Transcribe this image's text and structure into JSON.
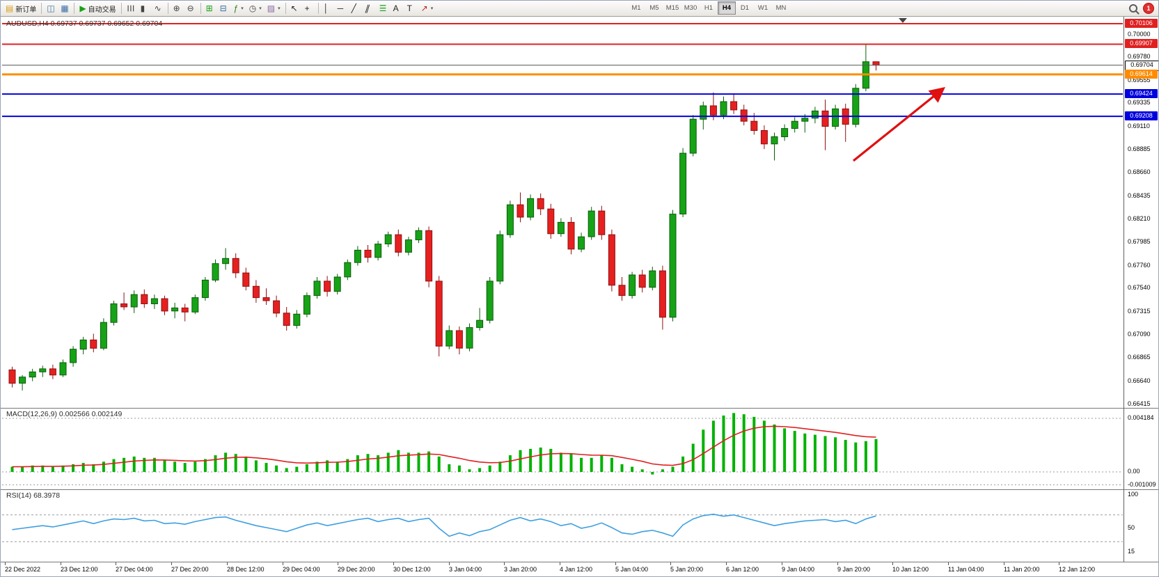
{
  "toolbar": {
    "alert_count": "1",
    "active_timeframe": "H4",
    "timeframes": [
      "M1",
      "M5",
      "M15",
      "M30",
      "H1",
      "H4",
      "D1",
      "W1",
      "MN"
    ],
    "items": [
      {
        "type": "button",
        "name": "new-order-button",
        "glyph": "▤",
        "glyph_color": "#d89c14",
        "label": "新订单"
      },
      {
        "type": "sep"
      },
      {
        "type": "icon",
        "name": "charts-icon",
        "glyph": "◫",
        "glyph_color": "#3a6ea5"
      },
      {
        "type": "icon",
        "name": "profiles-icon",
        "glyph": "▦",
        "glyph_color": "#3a6ea5"
      },
      {
        "type": "sep"
      },
      {
        "type": "button",
        "name": "auto-trading-button",
        "glyph": "▶",
        "glyph_color": "#18a018",
        "label": "自动交易"
      },
      {
        "type": "sep"
      },
      {
        "type": "icon",
        "name": "bar-chart-icon",
        "glyph": "☰",
        "glyph_color": "#444444",
        "rotate": 90
      },
      {
        "type": "icon",
        "name": "candlestick-chart-icon",
        "glyph": "▮",
        "glyph_color": "#444444"
      },
      {
        "type": "icon",
        "name": "line-chart-icon",
        "glyph": "∿",
        "glyph_color": "#444444"
      },
      {
        "type": "sep"
      },
      {
        "type": "icon",
        "name": "zoom-in-icon",
        "glyph": "⊕",
        "glyph_color": "#444444"
      },
      {
        "type": "icon",
        "name": "zoom-out-icon",
        "glyph": "⊖",
        "glyph_color": "#444444"
      },
      {
        "type": "sep"
      },
      {
        "type": "icon",
        "name": "tile-windows-icon",
        "glyph": "⊞",
        "glyph_color": "#18a018"
      },
      {
        "type": "icon",
        "name": "chart-shift-icon",
        "glyph": "⊟",
        "glyph_color": "#3a6ea5"
      },
      {
        "type": "icon",
        "name": "indicators-icon",
        "glyph": "ƒ",
        "glyph_color": "#2a7a2a",
        "caret": true
      },
      {
        "type": "icon",
        "name": "periods-icon",
        "glyph": "◷",
        "glyph_color": "#444444",
        "caret": true
      },
      {
        "type": "icon",
        "name": "templates-icon",
        "glyph": "▨",
        "glyph_color": "#8868a8",
        "caret": true
      },
      {
        "type": "sep"
      },
      {
        "type": "icon",
        "name": "cursor-icon",
        "glyph": "↖",
        "glyph_color": "#222222"
      },
      {
        "type": "icon",
        "name": "crosshair-icon",
        "glyph": "+",
        "glyph_color": "#222222"
      },
      {
        "type": "sep"
      },
      {
        "type": "icon",
        "name": "vertical-line-icon",
        "glyph": "│",
        "glyph_color": "#222222"
      },
      {
        "type": "icon",
        "name": "horizontal-line-icon",
        "glyph": "─",
        "glyph_color": "#222222"
      },
      {
        "type": "icon",
        "name": "trendline-icon",
        "glyph": "╱",
        "glyph_color": "#222222"
      },
      {
        "type": "icon",
        "name": "equidistant-channel-icon",
        "glyph": "∥",
        "glyph_color": "#222222",
        "skew": true
      },
      {
        "type": "icon",
        "name": "fibonacci-icon",
        "glyph": "☰",
        "glyph_color": "#18a018"
      },
      {
        "type": "icon",
        "name": "text-icon",
        "glyph": "A",
        "glyph_color": "#222222"
      },
      {
        "type": "icon",
        "name": "text-label-icon",
        "glyph": "T",
        "glyph_color": "#222222"
      },
      {
        "type": "icon",
        "name": "arrows-icon",
        "glyph": "↗",
        "glyph_color": "#c02020",
        "caret": true
      }
    ]
  },
  "chart_data": {
    "type": "candlestick",
    "symbol": "AUDUSD",
    "timeframe": "H4",
    "header": "AUDUSD,H4 0.69737 0.69737 0.69652 0.69704",
    "current_bar": {
      "open": "0.69737",
      "high": "0.69737",
      "low": "0.69652",
      "close": "0.69704"
    },
    "price_range": [
      0.66415,
      0.70106
    ],
    "up_color": "#17a317",
    "down_color": "#e62020",
    "candles": [
      [
        0.6675,
        0.6678,
        0.6658,
        0.6662
      ],
      [
        0.6662,
        0.667,
        0.6655,
        0.6668
      ],
      [
        0.6668,
        0.6676,
        0.6664,
        0.6673
      ],
      [
        0.6673,
        0.6679,
        0.6668,
        0.6676
      ],
      [
        0.6676,
        0.668,
        0.6666,
        0.667
      ],
      [
        0.667,
        0.6685,
        0.6668,
        0.6682
      ],
      [
        0.6682,
        0.6698,
        0.6678,
        0.6695
      ],
      [
        0.6695,
        0.6707,
        0.669,
        0.6704
      ],
      [
        0.6704,
        0.671,
        0.6692,
        0.6696
      ],
      [
        0.6696,
        0.6725,
        0.6694,
        0.6721
      ],
      [
        0.6721,
        0.6742,
        0.6718,
        0.6739
      ],
      [
        0.6739,
        0.675,
        0.6733,
        0.6736
      ],
      [
        0.6736,
        0.6752,
        0.673,
        0.6748
      ],
      [
        0.6748,
        0.6753,
        0.6735,
        0.6739
      ],
      [
        0.6739,
        0.6748,
        0.6734,
        0.6744
      ],
      [
        0.6744,
        0.6747,
        0.6728,
        0.6732
      ],
      [
        0.6732,
        0.674,
        0.6725,
        0.6735
      ],
      [
        0.6735,
        0.6739,
        0.6722,
        0.6731
      ],
      [
        0.6731,
        0.6748,
        0.6729,
        0.6745
      ],
      [
        0.6745,
        0.6765,
        0.6742,
        0.6762
      ],
      [
        0.6762,
        0.6782,
        0.676,
        0.6778
      ],
      [
        0.6778,
        0.6793,
        0.6772,
        0.6783
      ],
      [
        0.6783,
        0.6788,
        0.6764,
        0.6769
      ],
      [
        0.6769,
        0.6774,
        0.6752,
        0.6756
      ],
      [
        0.6756,
        0.6762,
        0.674,
        0.6745
      ],
      [
        0.6745,
        0.6754,
        0.6738,
        0.6742
      ],
      [
        0.6742,
        0.6747,
        0.6726,
        0.673
      ],
      [
        0.673,
        0.6736,
        0.6713,
        0.6718
      ],
      [
        0.6718,
        0.6733,
        0.6715,
        0.6729
      ],
      [
        0.6729,
        0.675,
        0.6726,
        0.6747
      ],
      [
        0.6747,
        0.6765,
        0.6744,
        0.6761
      ],
      [
        0.6761,
        0.6766,
        0.6746,
        0.6751
      ],
      [
        0.6751,
        0.6768,
        0.6748,
        0.6765
      ],
      [
        0.6765,
        0.6782,
        0.6762,
        0.6779
      ],
      [
        0.6779,
        0.6795,
        0.6776,
        0.6791
      ],
      [
        0.6791,
        0.6796,
        0.6779,
        0.6784
      ],
      [
        0.6784,
        0.68,
        0.6781,
        0.6797
      ],
      [
        0.6797,
        0.6809,
        0.6794,
        0.6806
      ],
      [
        0.6806,
        0.6811,
        0.6785,
        0.6789
      ],
      [
        0.6789,
        0.6804,
        0.6786,
        0.6801
      ],
      [
        0.6801,
        0.6813,
        0.6798,
        0.681
      ],
      [
        0.681,
        0.6814,
        0.6755,
        0.6761
      ],
      [
        0.6761,
        0.6766,
        0.6688,
        0.6698
      ],
      [
        0.6698,
        0.6718,
        0.6695,
        0.6713
      ],
      [
        0.6713,
        0.6717,
        0.669,
        0.6696
      ],
      [
        0.6696,
        0.672,
        0.6693,
        0.6716
      ],
      [
        0.6716,
        0.6735,
        0.6713,
        0.6723
      ],
      [
        0.6723,
        0.6765,
        0.672,
        0.6761
      ],
      [
        0.6761,
        0.681,
        0.6758,
        0.6806
      ],
      [
        0.6806,
        0.6839,
        0.6803,
        0.6835
      ],
      [
        0.6835,
        0.6847,
        0.6818,
        0.6823
      ],
      [
        0.6823,
        0.6845,
        0.682,
        0.6841
      ],
      [
        0.6841,
        0.6846,
        0.6825,
        0.6831
      ],
      [
        0.6831,
        0.6836,
        0.6802,
        0.6807
      ],
      [
        0.6807,
        0.6822,
        0.6804,
        0.6818
      ],
      [
        0.6818,
        0.6823,
        0.6787,
        0.6792
      ],
      [
        0.6792,
        0.6808,
        0.6789,
        0.6804
      ],
      [
        0.6804,
        0.6833,
        0.6801,
        0.6829
      ],
      [
        0.6829,
        0.6834,
        0.6801,
        0.6806
      ],
      [
        0.6806,
        0.6811,
        0.6751,
        0.6757
      ],
      [
        0.6757,
        0.6765,
        0.6742,
        0.6747
      ],
      [
        0.6747,
        0.677,
        0.6744,
        0.6767
      ],
      [
        0.6767,
        0.6772,
        0.675,
        0.6755
      ],
      [
        0.6755,
        0.6775,
        0.6752,
        0.6771
      ],
      [
        0.6771,
        0.6776,
        0.6714,
        0.6726
      ],
      [
        0.6726,
        0.683,
        0.6722,
        0.6826
      ],
      [
        0.6826,
        0.689,
        0.6823,
        0.6885
      ],
      [
        0.6885,
        0.6922,
        0.6882,
        0.6918
      ],
      [
        0.6918,
        0.6935,
        0.6908,
        0.6931
      ],
      [
        0.6931,
        0.6944,
        0.6917,
        0.6922
      ],
      [
        0.6922,
        0.694,
        0.6918,
        0.6935
      ],
      [
        0.6935,
        0.6943,
        0.6923,
        0.6927
      ],
      [
        0.6927,
        0.6932,
        0.6912,
        0.6916
      ],
      [
        0.6916,
        0.6924,
        0.6903,
        0.6907
      ],
      [
        0.6907,
        0.6912,
        0.6889,
        0.6894
      ],
      [
        0.6894,
        0.6905,
        0.6878,
        0.6901
      ],
      [
        0.6901,
        0.6913,
        0.6897,
        0.6909
      ],
      [
        0.6909,
        0.692,
        0.6905,
        0.6916
      ],
      [
        0.6916,
        0.6923,
        0.6905,
        0.6919
      ],
      [
        0.6919,
        0.693,
        0.6914,
        0.6926
      ],
      [
        0.6926,
        0.6937,
        0.6888,
        0.6911
      ],
      [
        0.6911,
        0.6932,
        0.6908,
        0.6928
      ],
      [
        0.6928,
        0.6933,
        0.6896,
        0.6913
      ],
      [
        0.6913,
        0.6952,
        0.691,
        0.6948
      ],
      [
        0.6948,
        0.699,
        0.6945,
        0.69737
      ],
      [
        0.69737,
        0.69737,
        0.69652,
        0.69704
      ]
    ],
    "horizontal_lines": [
      {
        "label": "0.70106",
        "price": 0.70106,
        "color": "#e02020",
        "width": 2,
        "role": "resistance-line"
      },
      {
        "label": "0.69907",
        "price": 0.69907,
        "color": "#e02020",
        "width": 2,
        "role": "resistance-line"
      },
      {
        "label": "0.69704",
        "price": 0.69704,
        "color": "#555555",
        "width": 1,
        "role": "current-price-line"
      },
      {
        "label": "0.69614",
        "price": 0.69614,
        "color": "#ff8c00",
        "width": 3,
        "role": "level-line"
      },
      {
        "label": "0.69424",
        "price": 0.69424,
        "color": "#0000dd",
        "width": 2,
        "role": "support-line"
      },
      {
        "label": "0.69208",
        "price": 0.69208,
        "color": "#0000dd",
        "width": 2,
        "role": "support-line"
      }
    ],
    "price_scale": [
      "0.70106",
      "0.70000",
      "0.69907",
      "0.69780",
      "0.69704",
      "0.69614",
      "0.69555",
      "0.69424",
      "0.69335",
      "0.69208",
      "0.69110",
      "0.68885",
      "0.68660",
      "0.68435",
      "0.68210",
      "0.67985",
      "0.67760",
      "0.67540",
      "0.67315",
      "0.67090",
      "0.66865",
      "0.66640",
      "0.66415"
    ],
    "time_labels": [
      "22 Dec 2022",
      "23 Dec 12:00",
      "27 Dec 04:00",
      "27 Dec 20:00",
      "28 Dec 12:00",
      "29 Dec 04:00",
      "29 Dec 20:00",
      "30 Dec 12:00",
      "3 Jan 04:00",
      "3 Jan 20:00",
      "4 Jan 12:00",
      "5 Jan 04:00",
      "5 Jan 20:00",
      "6 Jan 12:00",
      "9 Jan 04:00",
      "9 Jan 20:00",
      "10 Jan 12:00",
      "11 Jan 04:00",
      "11 Jan 20:00",
      "12 Jan 12:00"
    ],
    "macd": {
      "display": "MACD(12,26,9) 0.002566 0.002149",
      "params": "12,26,9",
      "main_value": "0.002566",
      "signal_value": "0.002149",
      "hist_color": "#00b200",
      "signal_color": "#e02020",
      "scale": [
        "0.004184",
        "0.00",
        "-0.001009"
      ],
      "hist": [
        0.0004,
        0.0004,
        0.0005,
        0.0005,
        0.0004,
        0.0005,
        0.0006,
        0.0007,
        0.0006,
        0.0008,
        0.001,
        0.0011,
        0.0012,
        0.0011,
        0.0011,
        0.0009,
        0.0008,
        0.0007,
        0.0008,
        0.001,
        0.0013,
        0.0015,
        0.0014,
        0.0012,
        0.0009,
        0.0007,
        0.0005,
        0.0003,
        0.0004,
        0.0006,
        0.0008,
        0.0009,
        0.0008,
        0.001,
        0.0013,
        0.0014,
        0.0013,
        0.0015,
        0.0017,
        0.0015,
        0.0015,
        0.0016,
        0.0012,
        0.0006,
        0.0005,
        0.0002,
        0.0003,
        0.0005,
        0.0008,
        0.0013,
        0.0017,
        0.0018,
        0.0019,
        0.0018,
        0.0015,
        0.0014,
        0.0011,
        0.0011,
        0.0013,
        0.0011,
        0.0006,
        0.0004,
        0.0002,
        -0.0002,
        0.0002,
        0.0004,
        0.0012,
        0.0022,
        0.0033,
        0.004,
        0.0044,
        0.0046,
        0.0045,
        0.0043,
        0.004,
        0.0037,
        0.0034,
        0.0032,
        0.003,
        0.0029,
        0.0028,
        0.0027,
        0.0025,
        0.0023,
        0.0024,
        0.002566
      ]
    },
    "rsi": {
      "display": "RSI(14) 68.3978",
      "period": "14",
      "value": "68.3978",
      "line_color": "#3d9fe0",
      "scale": [
        "100",
        "50",
        "15"
      ],
      "levels": [
        70,
        30
      ],
      "values": [
        48,
        50,
        52,
        54,
        52,
        55,
        58,
        61,
        57,
        61,
        64,
        63,
        65,
        61,
        62,
        57,
        58,
        56,
        60,
        63,
        66,
        67,
        62,
        58,
        54,
        51,
        48,
        45,
        50,
        55,
        58,
        54,
        57,
        60,
        63,
        65,
        60,
        63,
        65,
        60,
        63,
        65,
        50,
        38,
        43,
        39,
        45,
        48,
        55,
        62,
        66,
        61,
        64,
        60,
        54,
        57,
        50,
        53,
        58,
        51,
        43,
        41,
        45,
        47,
        43,
        38,
        55,
        64,
        69,
        71,
        68,
        70,
        66,
        62,
        58,
        54,
        57,
        59,
        61,
        62,
        63,
        60,
        62,
        57,
        64,
        68.4
      ]
    },
    "trend_arrow": {
      "color": "#e01010",
      "direction": "up-right"
    }
  }
}
